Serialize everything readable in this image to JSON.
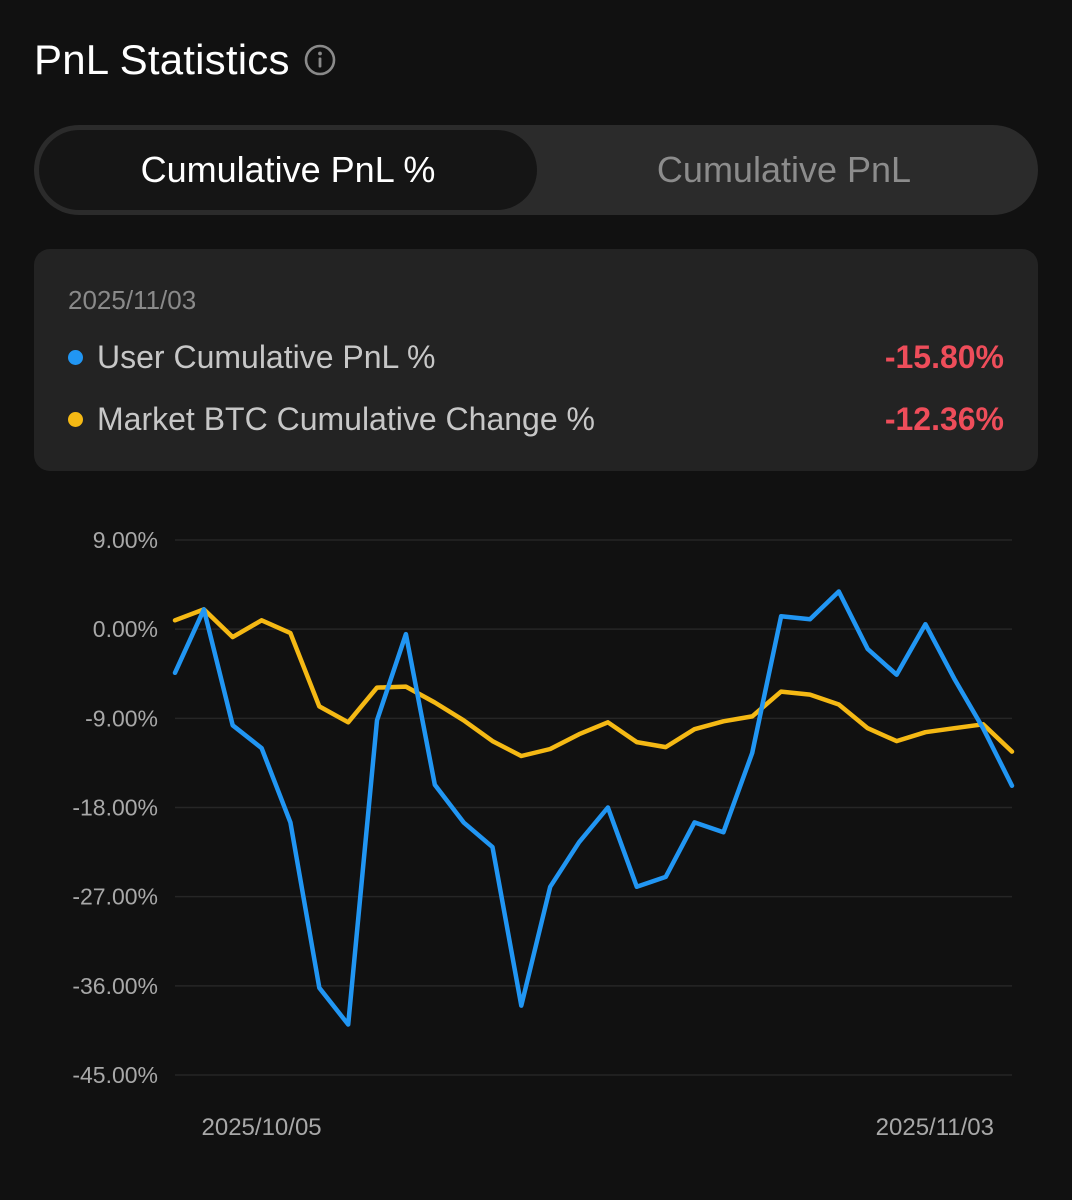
{
  "header": {
    "title": "PnL Statistics"
  },
  "tabs": [
    {
      "label": "Cumulative PnL %",
      "active": true
    },
    {
      "label": "Cumulative PnL",
      "active": false
    }
  ],
  "legend": {
    "date": "2025/11/03",
    "items": [
      {
        "label": "User Cumulative PnL %",
        "value": "-15.80%",
        "color": "#2196f3"
      },
      {
        "label": "Market BTC Cumulative Change %",
        "value": "-12.36%",
        "color": "#f5b914"
      }
    ],
    "value_color": "#ee4d5a"
  },
  "chart_data": {
    "type": "line",
    "y_ticks": [
      "9.00%",
      "0.00%",
      "-9.00%",
      "-18.00%",
      "-27.00%",
      "-36.00%",
      "-45.00%"
    ],
    "ylim": [
      -45,
      9
    ],
    "x_tick_labels": [
      {
        "label": "2025/10/05",
        "index": 3
      },
      {
        "label": "2025/11/03",
        "index": 29
      }
    ],
    "grid": true,
    "series": [
      {
        "name": "User Cumulative PnL %",
        "color": "#2196f3",
        "values": [
          -4.4,
          2.0,
          -9.7,
          -12.0,
          -19.5,
          -36.2,
          -39.9,
          -9.2,
          -0.5,
          -15.7,
          -19.5,
          -22.0,
          -38.0,
          -26.0,
          -21.5,
          -18.0,
          -26.0,
          -25.0,
          -19.5,
          -20.5,
          -12.5,
          1.3,
          1.0,
          3.8,
          -2.0,
          -4.6,
          0.5,
          -5.0,
          -10.0,
          -15.8
        ]
      },
      {
        "name": "Market BTC Cumulative Change %",
        "color": "#f5b914",
        "values": [
          0.9,
          2.0,
          -0.8,
          0.9,
          -0.4,
          -7.8,
          -9.4,
          -5.9,
          -5.8,
          -7.4,
          -9.2,
          -11.3,
          -12.8,
          -12.1,
          -10.6,
          -9.4,
          -11.4,
          -11.9,
          -10.1,
          -9.3,
          -8.8,
          -6.3,
          -6.6,
          -7.6,
          -10.0,
          -11.3,
          -10.4,
          -10.0,
          -9.6,
          -12.36
        ]
      }
    ]
  }
}
